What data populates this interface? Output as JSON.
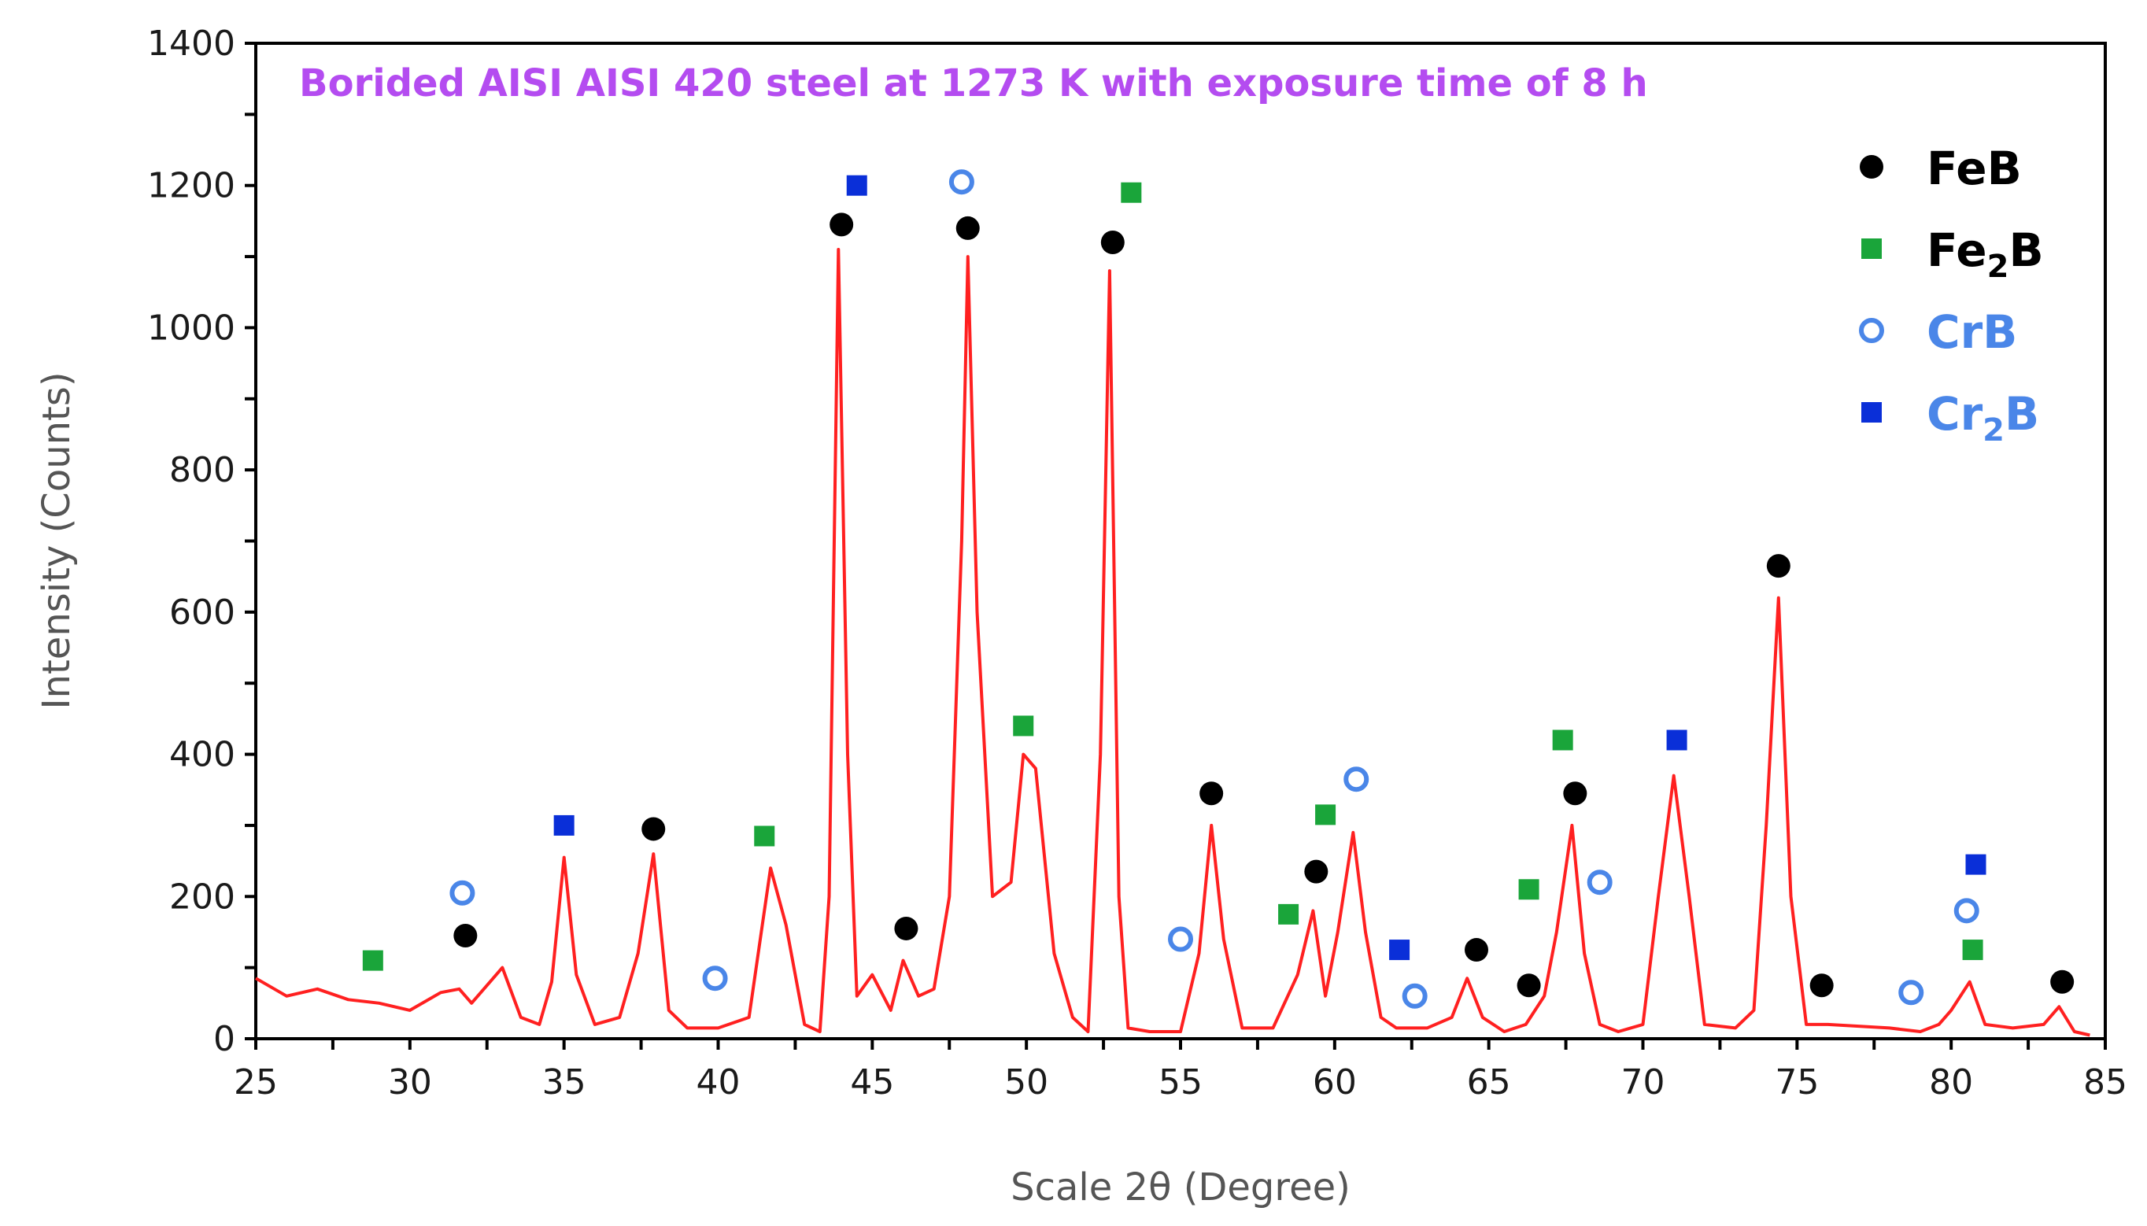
{
  "chart_data": {
    "type": "line",
    "title": "Borided AISI AISI 420 steel at 1273 K with exposure time of 8 h",
    "xlabel": "Scale 2θ (Degree)",
    "ylabel": "Intensity (Counts)",
    "xlim": [
      25,
      85
    ],
    "ylim": [
      0,
      1400
    ],
    "xticks": [
      25,
      30,
      35,
      40,
      45,
      50,
      55,
      60,
      65,
      70,
      75,
      80,
      85
    ],
    "yticks": [
      0,
      200,
      400,
      600,
      800,
      1000,
      1200,
      1400
    ],
    "grid": false,
    "legend_position": "top-right",
    "series": [
      {
        "color": "#ff2020",
        "x": [
          25,
          26,
          27,
          28,
          29,
          30,
          31,
          31.6,
          32,
          32.6,
          33,
          33.6,
          34.2,
          34.6,
          35,
          35.4,
          36,
          36.8,
          37.4,
          37.9,
          38.4,
          39,
          40,
          41,
          41.4,
          41.7,
          42.2,
          42.8,
          43.3,
          43.6,
          43.9,
          44.2,
          44.5,
          45,
          45.6,
          46,
          46.5,
          47,
          47.5,
          47.9,
          48.1,
          48.4,
          48.9,
          49.5,
          49.9,
          50.3,
          50.9,
          51.5,
          52,
          52.4,
          52.7,
          53,
          53.3,
          54,
          55,
          55.6,
          56,
          56.4,
          57,
          58,
          58.8,
          59.3,
          59.7,
          60.1,
          60.6,
          61,
          61.5,
          62,
          63,
          63.8,
          64.3,
          64.8,
          65.5,
          66.2,
          66.8,
          67.2,
          67.7,
          68.1,
          68.6,
          69.2,
          70,
          70.5,
          71,
          71.5,
          72,
          73,
          73.6,
          74,
          74.4,
          74.8,
          75.3,
          76,
          78,
          79,
          79.6,
          80,
          80.6,
          81.1,
          82,
          83,
          83.5,
          84,
          84.5
        ],
        "y": [
          85,
          60,
          70,
          55,
          50,
          40,
          65,
          70,
          50,
          80,
          100,
          30,
          20,
          80,
          255,
          90,
          20,
          30,
          120,
          260,
          40,
          15,
          15,
          30,
          150,
          240,
          160,
          20,
          10,
          200,
          1110,
          400,
          60,
          90,
          40,
          110,
          60,
          70,
          200,
          700,
          1100,
          600,
          200,
          220,
          400,
          380,
          120,
          30,
          10,
          400,
          1080,
          200,
          15,
          10,
          10,
          120,
          300,
          140,
          15,
          15,
          90,
          180,
          60,
          150,
          290,
          150,
          30,
          15,
          15,
          30,
          85,
          30,
          10,
          20,
          60,
          150,
          300,
          120,
          20,
          10,
          20,
          200,
          370,
          200,
          20,
          15,
          40,
          300,
          620,
          200,
          20,
          20,
          15,
          10,
          20,
          40,
          80,
          20,
          15,
          20,
          45,
          10,
          5
        ]
      }
    ],
    "legend": [
      {
        "label": "FeB",
        "marker": "circle",
        "color": "#000000",
        "text_color": "#000000"
      },
      {
        "label": "Fe",
        "sub": "2",
        "suffix": "B",
        "marker": "square",
        "color": "#1aa53a",
        "text_color": "#000000"
      },
      {
        "label": "CrB",
        "marker": "open-circle",
        "color": "#4a86e8",
        "text_color": "#4a86e8"
      },
      {
        "label": "Cr",
        "sub": "2",
        "suffix": "B",
        "marker": "square",
        "color": "#0a2fd8",
        "text_color": "#4a86e8"
      }
    ],
    "annotations": {
      "FeB": [
        [
          31.8,
          145
        ],
        [
          37.9,
          295
        ],
        [
          44,
          1145
        ],
        [
          46.1,
          155
        ],
        [
          48.1,
          1140
        ],
        [
          52.8,
          1120
        ],
        [
          56,
          345
        ],
        [
          59.4,
          235
        ],
        [
          64.6,
          125
        ],
        [
          66.3,
          75
        ],
        [
          67.8,
          345
        ],
        [
          74.4,
          665
        ],
        [
          75.8,
          75
        ],
        [
          83.6,
          80
        ]
      ],
      "Fe2B": [
        [
          28.8,
          110
        ],
        [
          41.5,
          285
        ],
        [
          49.9,
          440
        ],
        [
          53.4,
          1190
        ],
        [
          58.5,
          175
        ],
        [
          59.7,
          315
        ],
        [
          66.3,
          210
        ],
        [
          67.4,
          420
        ],
        [
          80.7,
          125
        ]
      ],
      "CrB": [
        [
          31.7,
          205
        ],
        [
          39.9,
          85
        ],
        [
          47.9,
          1205
        ],
        [
          55,
          140
        ],
        [
          60.7,
          365
        ],
        [
          62.6,
          60
        ],
        [
          68.6,
          220
        ],
        [
          78.7,
          65
        ],
        [
          80.5,
          180
        ]
      ],
      "Cr2B": [
        [
          35,
          300
        ],
        [
          44.5,
          1200
        ],
        [
          62.1,
          125
        ],
        [
          71.1,
          420
        ],
        [
          80.8,
          245
        ]
      ]
    }
  }
}
